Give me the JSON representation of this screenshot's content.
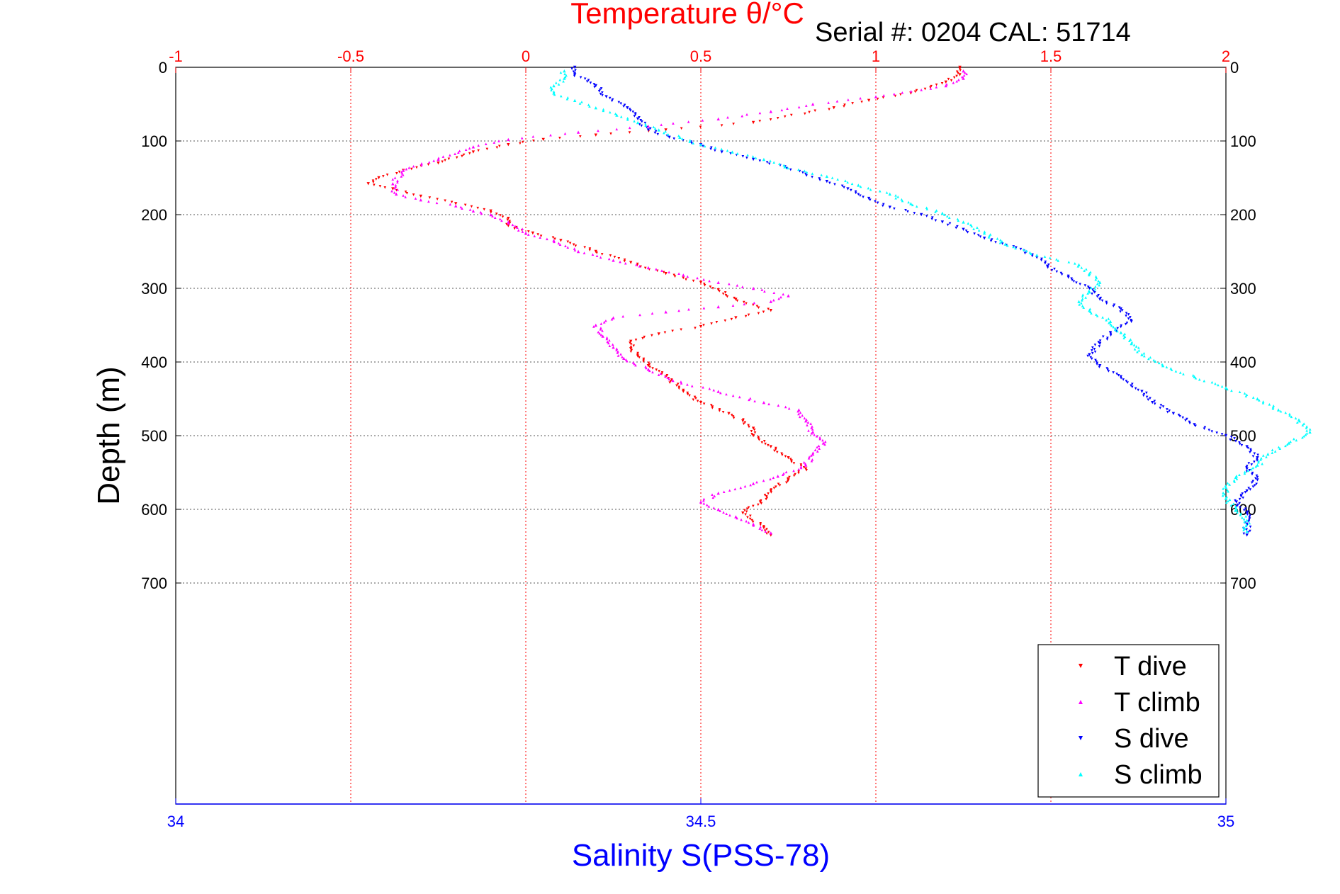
{
  "chart_data": {
    "type": "scatter",
    "title": "Temperature θ/°C",
    "subtitle": "Serial #: 0204  CAL: 51714",
    "ylabel": "Depth (m)",
    "xlabel_bottom": "Salinity S(PSS-78)",
    "y_axis": {
      "range": [
        0,
        1000
      ],
      "reversed": true,
      "ticks": [
        0,
        100,
        200,
        300,
        400,
        500,
        600,
        700
      ],
      "tick_labels": [
        "0",
        "100",
        "200",
        "300",
        "400",
        "500",
        "600",
        "700"
      ]
    },
    "x_axis_top": {
      "quantity": "temperature",
      "range": [
        -1,
        2
      ],
      "ticks": [
        -1,
        -0.5,
        0,
        0.5,
        1,
        1.5,
        2
      ],
      "tick_labels": [
        "-1",
        "-0.5",
        "0",
        "0.5",
        "1",
        "1.5",
        "2"
      ],
      "color": "#ff0000",
      "grid": true
    },
    "x_axis_bottom": {
      "quantity": "salinity",
      "range": [
        34,
        35
      ],
      "ticks": [
        34,
        34.5,
        35
      ],
      "tick_labels": [
        "34",
        "34.5",
        "35"
      ],
      "color": "#0000ff"
    },
    "legend_placement": "bottom-right",
    "series": [
      {
        "name": "T dive",
        "axis": "temperature",
        "color": "#ff0000",
        "marker": "triangle-down",
        "points": [
          [
            1.24,
            0
          ],
          [
            1.24,
            10
          ],
          [
            1.2,
            20
          ],
          [
            1.1,
            35
          ],
          [
            0.98,
            45
          ],
          [
            0.88,
            55
          ],
          [
            0.65,
            75
          ],
          [
            0.4,
            85
          ],
          [
            0.2,
            92
          ],
          [
            0.05,
            98
          ],
          [
            -0.05,
            105
          ],
          [
            -0.15,
            115
          ],
          [
            -0.25,
            130
          ],
          [
            -0.35,
            140
          ],
          [
            -0.42,
            150
          ],
          [
            -0.45,
            158
          ],
          [
            -0.38,
            165
          ],
          [
            -0.3,
            175
          ],
          [
            -0.2,
            185
          ],
          [
            -0.1,
            195
          ],
          [
            -0.05,
            205
          ],
          [
            -0.05,
            215
          ],
          [
            0.02,
            225
          ],
          [
            0.1,
            235
          ],
          [
            0.2,
            250
          ],
          [
            0.3,
            265
          ],
          [
            0.4,
            280
          ],
          [
            0.5,
            292
          ],
          [
            0.55,
            302
          ],
          [
            0.6,
            315
          ],
          [
            0.7,
            330
          ],
          [
            0.6,
            340
          ],
          [
            0.5,
            352
          ],
          [
            0.38,
            362
          ],
          [
            0.3,
            372
          ],
          [
            0.3,
            382
          ],
          [
            0.32,
            392
          ],
          [
            0.35,
            405
          ],
          [
            0.4,
            420
          ],
          [
            0.45,
            440
          ],
          [
            0.5,
            455
          ],
          [
            0.58,
            470
          ],
          [
            0.62,
            480
          ],
          [
            0.65,
            490
          ],
          [
            0.65,
            500
          ],
          [
            0.7,
            515
          ],
          [
            0.75,
            530
          ],
          [
            0.8,
            545
          ],
          [
            0.75,
            560
          ],
          [
            0.7,
            575
          ],
          [
            0.67,
            590
          ],
          [
            0.62,
            605
          ],
          [
            0.68,
            625
          ],
          [
            0.7,
            635
          ]
        ]
      },
      {
        "name": "T climb",
        "axis": "temperature",
        "color": "#ff00ff",
        "marker": "triangle-up",
        "points": [
          [
            1.25,
            5
          ],
          [
            1.25,
            15
          ],
          [
            1.2,
            25
          ],
          [
            1.0,
            40
          ],
          [
            0.82,
            50
          ],
          [
            0.7,
            60
          ],
          [
            0.55,
            70
          ],
          [
            0.35,
            80
          ],
          [
            0.15,
            88
          ],
          [
            -0.05,
            98
          ],
          [
            -0.15,
            108
          ],
          [
            -0.25,
            125
          ],
          [
            -0.35,
            140
          ],
          [
            -0.38,
            158
          ],
          [
            -0.37,
            172
          ],
          [
            -0.3,
            180
          ],
          [
            -0.2,
            188
          ],
          [
            -0.15,
            195
          ],
          [
            -0.1,
            200
          ],
          [
            -0.05,
            210
          ],
          [
            0.0,
            225
          ],
          [
            0.08,
            235
          ],
          [
            0.15,
            250
          ],
          [
            0.25,
            262
          ],
          [
            0.35,
            272
          ],
          [
            0.45,
            282
          ],
          [
            0.55,
            292
          ],
          [
            0.65,
            300
          ],
          [
            0.75,
            310
          ],
          [
            0.7,
            318
          ],
          [
            0.55,
            325
          ],
          [
            0.4,
            332
          ],
          [
            0.25,
            340
          ],
          [
            0.2,
            350
          ],
          [
            0.22,
            365
          ],
          [
            0.25,
            380
          ],
          [
            0.28,
            395
          ],
          [
            0.35,
            410
          ],
          [
            0.42,
            425
          ],
          [
            0.55,
            440
          ],
          [
            0.68,
            455
          ],
          [
            0.78,
            465
          ],
          [
            0.8,
            480
          ],
          [
            0.82,
            495
          ],
          [
            0.85,
            510
          ],
          [
            0.82,
            525
          ],
          [
            0.8,
            540
          ],
          [
            0.72,
            555
          ],
          [
            0.65,
            565
          ],
          [
            0.55,
            578
          ],
          [
            0.5,
            590
          ],
          [
            0.55,
            600
          ],
          [
            0.6,
            610
          ],
          [
            0.65,
            620
          ],
          [
            0.7,
            632
          ]
        ]
      },
      {
        "name": "S dive",
        "axis": "salinity",
        "color": "#0000ff",
        "marker": "triangle-down",
        "points": [
          [
            34.38,
            0
          ],
          [
            34.38,
            10
          ],
          [
            34.4,
            25
          ],
          [
            34.41,
            40
          ],
          [
            34.43,
            55
          ],
          [
            34.44,
            70
          ],
          [
            34.45,
            85
          ],
          [
            34.47,
            95
          ],
          [
            34.5,
            105
          ],
          [
            34.52,
            115
          ],
          [
            34.55,
            125
          ],
          [
            34.58,
            135
          ],
          [
            34.6,
            145
          ],
          [
            34.62,
            155
          ],
          [
            34.64,
            165
          ],
          [
            34.66,
            178
          ],
          [
            34.68,
            190
          ],
          [
            34.71,
            200
          ],
          [
            34.73,
            210
          ],
          [
            34.75,
            220
          ],
          [
            34.77,
            232
          ],
          [
            34.8,
            245
          ],
          [
            34.82,
            258
          ],
          [
            34.83,
            270
          ],
          [
            34.85,
            285
          ],
          [
            34.87,
            300
          ],
          [
            34.88,
            315
          ],
          [
            34.9,
            328
          ],
          [
            34.91,
            345
          ],
          [
            34.89,
            360
          ],
          [
            34.88,
            375
          ],
          [
            34.87,
            390
          ],
          [
            34.88,
            405
          ],
          [
            34.9,
            420
          ],
          [
            34.92,
            440
          ],
          [
            34.93,
            455
          ],
          [
            34.95,
            470
          ],
          [
            34.97,
            485
          ],
          [
            35.0,
            500
          ],
          [
            35.02,
            515
          ],
          [
            35.03,
            530
          ],
          [
            35.02,
            545
          ],
          [
            35.03,
            560
          ],
          [
            35.02,
            575
          ],
          [
            35.01,
            590
          ],
          [
            35.02,
            605
          ],
          [
            35.02,
            620
          ],
          [
            35.02,
            635
          ]
        ]
      },
      {
        "name": "S climb",
        "axis": "salinity",
        "color": "#00ffff",
        "marker": "triangle-up",
        "points": [
          [
            34.37,
            5
          ],
          [
            34.37,
            15
          ],
          [
            34.36,
            25
          ],
          [
            34.36,
            35
          ],
          [
            34.38,
            45
          ],
          [
            34.4,
            55
          ],
          [
            34.42,
            65
          ],
          [
            34.44,
            75
          ],
          [
            34.46,
            85
          ],
          [
            34.48,
            95
          ],
          [
            34.5,
            105
          ],
          [
            34.53,
            115
          ],
          [
            34.56,
            125
          ],
          [
            34.58,
            135
          ],
          [
            34.62,
            148
          ],
          [
            34.65,
            160
          ],
          [
            34.68,
            172
          ],
          [
            34.7,
            185
          ],
          [
            34.73,
            198
          ],
          [
            34.75,
            210
          ],
          [
            34.77,
            225
          ],
          [
            34.79,
            240
          ],
          [
            34.82,
            255
          ],
          [
            34.86,
            268
          ],
          [
            34.87,
            280
          ],
          [
            34.88,
            292
          ],
          [
            34.87,
            305
          ],
          [
            34.86,
            318
          ],
          [
            34.87,
            330
          ],
          [
            34.89,
            345
          ],
          [
            34.9,
            360
          ],
          [
            34.91,
            375
          ],
          [
            34.92,
            390
          ],
          [
            34.94,
            405
          ],
          [
            34.97,
            420
          ],
          [
            35.0,
            435
          ],
          [
            35.03,
            450
          ],
          [
            35.05,
            465
          ],
          [
            35.07,
            480
          ],
          [
            35.08,
            495
          ],
          [
            35.06,
            510
          ],
          [
            35.04,
            525
          ],
          [
            35.03,
            540
          ],
          [
            35.01,
            555
          ],
          [
            35.0,
            570
          ],
          [
            35.0,
            585
          ],
          [
            35.01,
            600
          ],
          [
            35.02,
            615
          ],
          [
            35.02,
            630
          ]
        ]
      }
    ]
  }
}
